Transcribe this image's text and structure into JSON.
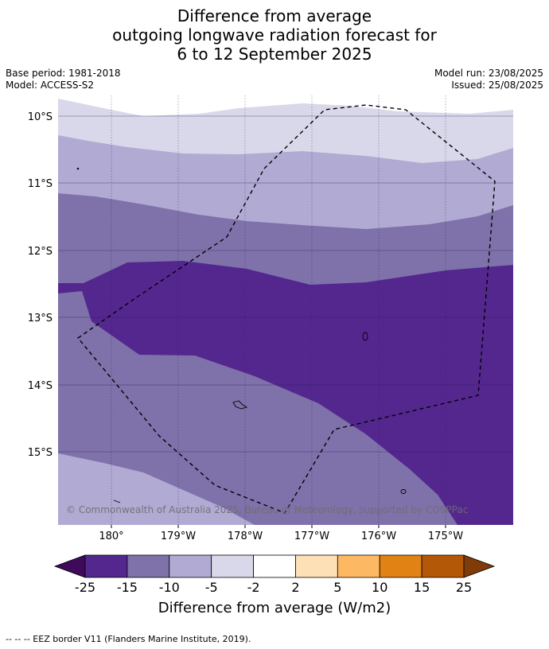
{
  "title": {
    "line1": "Difference from average",
    "line2": "outgoing longwave radiation forecast for",
    "line3": "6 to 12 September 2025"
  },
  "meta": {
    "base_period": "Base period: 1981-2018",
    "model": "Model: ACCESS-S2",
    "model_run": "Model run: 23/08/2025",
    "issued": "Issued: 25/08/2025"
  },
  "map": {
    "lat_labels": [
      "10°S",
      "11°S",
      "12°S",
      "13°S",
      "14°S",
      "15°S"
    ],
    "lon_labels": [
      "180°",
      "179°W",
      "178°W",
      "177°W",
      "176°W",
      "175°W"
    ],
    "copyright": "© Commonwealth of Australia 2025, Bureau of Meteorology, supported by COSPPac"
  },
  "legend": {
    "ticks": [
      "-25",
      "-15",
      "-10",
      "-5",
      "-2",
      "2",
      "5",
      "10",
      "15",
      "25"
    ],
    "colors": [
      "#3f0a5b",
      "#54278f",
      "#7f71a9",
      "#b1aad3",
      "#d8d8ea",
      "#ffffff",
      "#fee0b6",
      "#fdb863",
      "#e08214",
      "#b35806",
      "#7f3b08"
    ],
    "label": "Difference from average (W/m2)"
  },
  "footer": "--  --  -- EEZ border V11 (Flanders Marine Institute, 2019)."
}
